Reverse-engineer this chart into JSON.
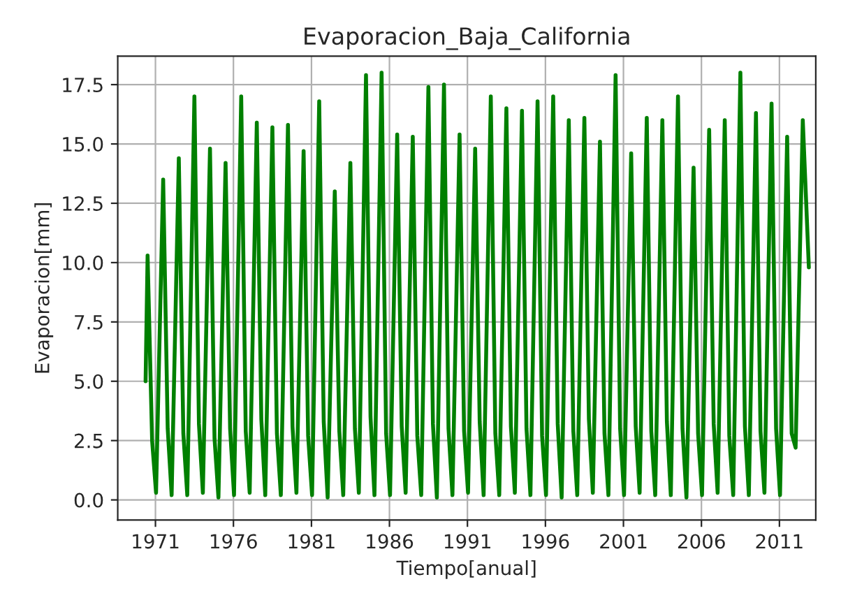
{
  "chart_data": {
    "type": "line",
    "title": "Evaporacion_Baja_California",
    "xlabel": "Tiempo[anual]",
    "ylabel": "Evaporacion[mm]",
    "x": [
      "1970-05-15",
      "1970-07-01",
      "1970-10-15",
      "1971-01-15",
      "1971-07-01",
      "1971-10-15",
      "1972-01-15",
      "1972-07-01",
      "1972-10-15",
      "1973-01-15",
      "1973-07-01",
      "1973-10-15",
      "1974-01-15",
      "1974-07-01",
      "1974-10-15",
      "1975-01-15",
      "1975-07-01",
      "1975-10-15",
      "1976-01-15",
      "1976-07-01",
      "1976-10-15",
      "1977-01-15",
      "1977-07-01",
      "1977-10-15",
      "1978-01-15",
      "1978-07-01",
      "1978-10-15",
      "1979-01-15",
      "1979-07-01",
      "1979-10-15",
      "1980-01-15",
      "1980-07-01",
      "1980-10-15",
      "1981-01-15",
      "1981-07-01",
      "1981-10-15",
      "1982-01-15",
      "1982-07-01",
      "1982-10-15",
      "1983-01-15",
      "1983-07-01",
      "1983-10-15",
      "1984-01-15",
      "1984-07-01",
      "1984-10-15",
      "1985-01-15",
      "1985-07-01",
      "1985-10-15",
      "1986-01-15",
      "1986-07-01",
      "1986-10-15",
      "1987-01-15",
      "1987-07-01",
      "1987-10-15",
      "1988-01-15",
      "1988-07-01",
      "1988-10-15",
      "1989-01-15",
      "1989-07-01",
      "1989-10-15",
      "1990-01-15",
      "1990-07-01",
      "1990-10-15",
      "1991-01-15",
      "1991-07-01",
      "1991-10-15",
      "1992-01-15",
      "1992-07-01",
      "1992-10-15",
      "1993-01-15",
      "1993-07-01",
      "1993-10-15",
      "1994-01-15",
      "1994-07-01",
      "1994-10-15",
      "1995-01-15",
      "1995-07-01",
      "1995-10-15",
      "1996-01-15",
      "1996-07-01",
      "1996-10-15",
      "1997-01-15",
      "1997-07-01",
      "1997-10-15",
      "1998-01-15",
      "1998-07-01",
      "1998-10-15",
      "1999-01-15",
      "1999-07-01",
      "1999-10-15",
      "2000-01-15",
      "2000-07-01",
      "2000-10-15",
      "2001-01-15",
      "2001-07-01",
      "2001-10-15",
      "2002-01-15",
      "2002-07-01",
      "2002-10-15",
      "2003-01-15",
      "2003-07-01",
      "2003-10-15",
      "2004-01-15",
      "2004-07-01",
      "2004-10-15",
      "2005-01-15",
      "2005-07-01",
      "2005-10-15",
      "2006-01-15",
      "2006-07-01",
      "2006-10-15",
      "2007-01-15",
      "2007-07-01",
      "2007-10-15",
      "2008-01-15",
      "2008-07-01",
      "2008-10-15",
      "2009-01-15",
      "2009-07-01",
      "2009-10-15",
      "2010-01-15",
      "2010-07-01",
      "2010-10-15",
      "2011-01-15",
      "2011-07-01",
      "2011-10-15",
      "2012-01-15",
      "2012-07-01",
      "2012-11-20"
    ],
    "series": [
      {
        "color": "#008000",
        "values": [
          5.0,
          10.3,
          2.5,
          0.3,
          13.5,
          3.0,
          0.2,
          14.4,
          2.8,
          0.2,
          17.0,
          3.2,
          0.3,
          14.8,
          2.6,
          0.1,
          14.2,
          3.0,
          0.2,
          17.0,
          2.9,
          0.3,
          15.9,
          3.4,
          0.2,
          15.7,
          2.8,
          0.2,
          15.8,
          3.1,
          0.3,
          14.7,
          2.7,
          0.2,
          16.8,
          3.3,
          0.1,
          13.0,
          2.9,
          0.2,
          14.2,
          3.0,
          0.3,
          17.9,
          3.5,
          0.2,
          18.0,
          2.8,
          0.2,
          15.4,
          3.1,
          0.3,
          15.3,
          2.7,
          0.2,
          17.4,
          3.2,
          0.1,
          17.5,
          3.0,
          0.2,
          15.4,
          2.9,
          0.3,
          14.8,
          3.3,
          0.2,
          17.0,
          2.8,
          0.2,
          16.5,
          3.1,
          0.3,
          16.4,
          3.0,
          0.2,
          16.8,
          2.7,
          0.2,
          17.0,
          3.2,
          0.1,
          16.0,
          2.9,
          0.2,
          16.1,
          3.4,
          0.3,
          15.1,
          2.8,
          0.2,
          17.9,
          3.0,
          0.2,
          14.6,
          3.1,
          0.3,
          16.1,
          2.9,
          0.2,
          16.0,
          3.3,
          0.2,
          17.0,
          3.0,
          0.1,
          14.0,
          2.8,
          0.2,
          15.6,
          3.2,
          0.3,
          16.0,
          2.7,
          0.2,
          18.0,
          3.1,
          0.2,
          16.3,
          2.9,
          0.3,
          16.7,
          3.0,
          0.2,
          15.3,
          2.8,
          2.2,
          16.0,
          9.8
        ]
      }
    ],
    "xlim": [
      "1968-08",
      "2013-05"
    ],
    "xticks": [
      "1971",
      "1976",
      "1981",
      "1986",
      "1991",
      "1996",
      "2001",
      "2006",
      "2011"
    ],
    "ylim": [
      -0.85,
      18.7
    ],
    "yticks": [
      {
        "value": 0,
        "label": "0.0"
      },
      2.5,
      {
        "value": 5,
        "label": "5.0"
      },
      7.5,
      {
        "value": 10,
        "label": "10.0"
      },
      12.5,
      {
        "value": 15,
        "label": "15.0"
      },
      17.5
    ],
    "grid": true
  }
}
